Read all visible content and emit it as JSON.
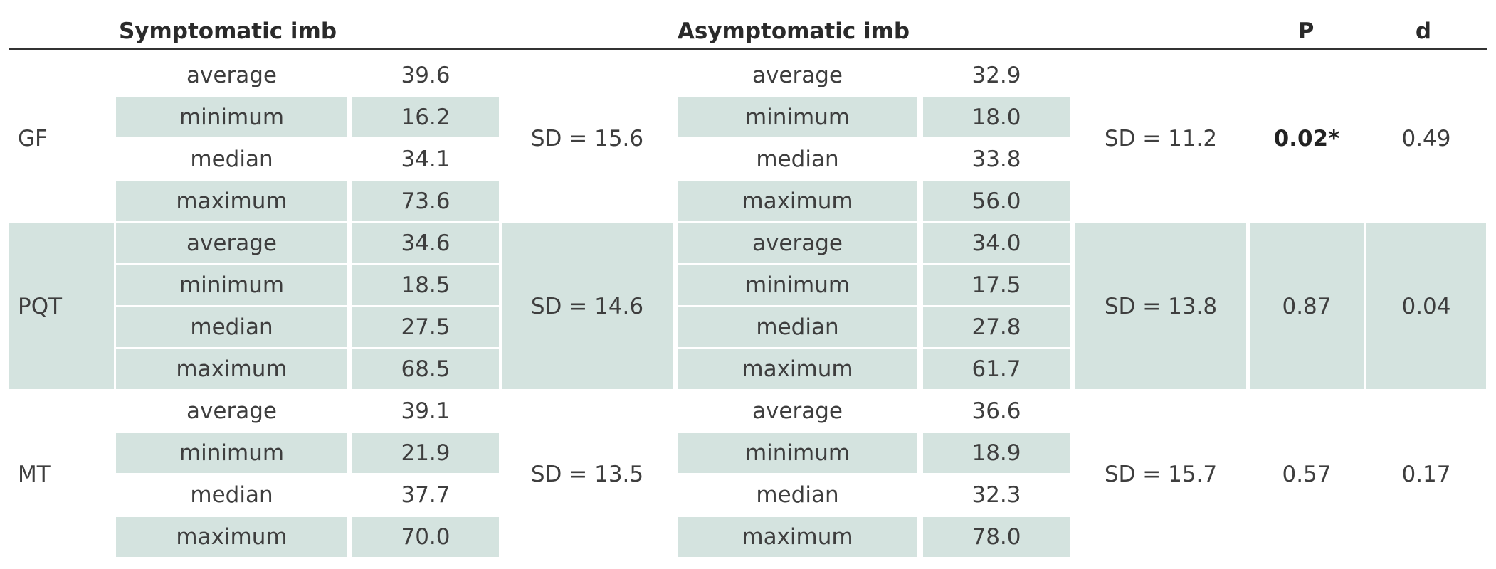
{
  "headers": {
    "symptomatic": "Symptomatic imb",
    "asymptomatic": "Asymptomatic imb",
    "p": "P",
    "d": "d"
  },
  "groups": [
    {
      "name": "GF",
      "symptomatic": {
        "stats": [
          [
            "average",
            "39.6"
          ],
          [
            "minimum",
            "16.2"
          ],
          [
            "median",
            "34.1"
          ],
          [
            "maximum",
            "73.6"
          ]
        ],
        "sd": "SD = 15.6"
      },
      "asymptomatic": {
        "stats": [
          [
            "average",
            "32.9"
          ],
          [
            "minimum",
            "18.0"
          ],
          [
            "median",
            "33.8"
          ],
          [
            "maximum",
            "56.0"
          ]
        ],
        "sd": "SD = 11.2"
      },
      "p": "0.02*",
      "p_bold": true,
      "d": "0.49"
    },
    {
      "name": "PQT",
      "symptomatic": {
        "stats": [
          [
            "average",
            "34.6"
          ],
          [
            "minimum",
            "18.5"
          ],
          [
            "median",
            "27.5"
          ],
          [
            "maximum",
            "68.5"
          ]
        ],
        "sd": "SD = 14.6"
      },
      "asymptomatic": {
        "stats": [
          [
            "average",
            "34.0"
          ],
          [
            "minimum",
            "17.5"
          ],
          [
            "median",
            "27.8"
          ],
          [
            "maximum",
            "61.7"
          ]
        ],
        "sd": "SD = 13.8"
      },
      "p": "0.87",
      "p_bold": false,
      "d": "0.04"
    },
    {
      "name": "MT",
      "symptomatic": {
        "stats": [
          [
            "average",
            "39.1"
          ],
          [
            "minimum",
            "21.9"
          ],
          [
            "median",
            "37.7"
          ],
          [
            "maximum",
            "70.0"
          ]
        ],
        "sd": "SD = 13.5"
      },
      "asymptomatic": {
        "stats": [
          [
            "average",
            "36.6"
          ],
          [
            "minimum",
            "18.9"
          ],
          [
            "median",
            "32.3"
          ],
          [
            "maximum",
            "78.0"
          ]
        ],
        "sd": "SD = 15.7"
      },
      "p": "0.57",
      "p_bold": false,
      "d": "0.17"
    }
  ],
  "colors": {
    "shade": "#d4e3df",
    "rule": "#333333"
  }
}
